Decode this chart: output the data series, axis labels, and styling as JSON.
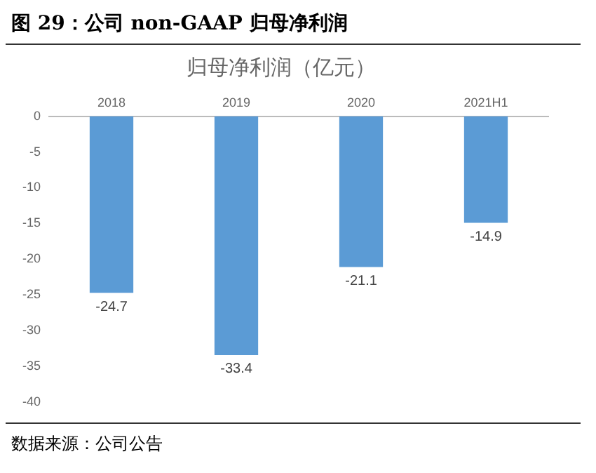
{
  "chart_data": {
    "type": "bar",
    "title": "图 29：公司 non-GAAP 归母净利润",
    "subtitle": "归母净利润（亿元）",
    "categories": [
      "2018",
      "2019",
      "2020",
      "2021H1"
    ],
    "values": [
      -24.7,
      -33.4,
      -21.1,
      -14.9
    ],
    "color": "#5b9bd5",
    "ylim": [
      -40,
      0
    ],
    "yticks": [
      0,
      -5,
      -10,
      -15,
      -20,
      -25,
      -30,
      -35,
      -40
    ],
    "grid": false,
    "legend": false,
    "data_labels": true,
    "annotations": [
      "数据来源：公司公告"
    ]
  }
}
